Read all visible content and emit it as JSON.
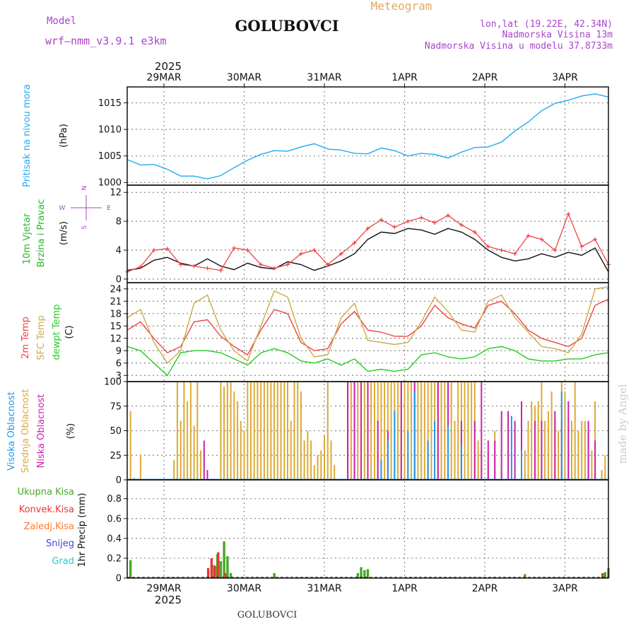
{
  "header": {
    "model_label": "Model",
    "model_name": "wrf–nmm_v3.9.1  e3km",
    "station": "GOLUBOVCI",
    "meteogram": "Meteogram",
    "lonlat": "lon,lat (19.22E, 42.34N)",
    "altitude": "Nadmorska Visina 13m",
    "model_altitude": "Nadmorska Visina u modelu 37.8733m",
    "footer_station": "GOLUBOVCI",
    "watermark": "made by Angel",
    "year": "2025"
  },
  "colors": {
    "pressure": "#22aaee",
    "wind_label": "#22bb22",
    "t2m": "#ee4444",
    "tsfc": "#ccaa44",
    "dewpt": "#22cc22",
    "cloud_high": "#2299ee",
    "cloud_mid": "#ddaa33",
    "cloud_low": "#cc22aa",
    "precip_total": "#44aa22",
    "precip_conv": "#ee3333",
    "precip_frozen": "#ff7733",
    "snow": "#4444dd",
    "hail": "#22cccc",
    "compass": "#aa44cc",
    "grid": "#888888"
  },
  "chart_data": {
    "type": "meteogram",
    "time_axis": {
      "start": "2025-03-28T13:00",
      "hours": 144,
      "ticks": [
        "29MAR",
        "30MAR",
        "31MAR",
        "1APR",
        "2APR",
        "3APR"
      ],
      "tick_hours": [
        11,
        35,
        59,
        83,
        107,
        131
      ]
    },
    "panels": [
      {
        "id": "pressure",
        "type": "line",
        "ylabel": "Pritisak na nivou mora",
        "unit": "(hPa)",
        "ylim": [
          999.5,
          1018
        ],
        "yticks": [
          1000,
          1005,
          1010,
          1015
        ],
        "series": [
          {
            "name": "pressure",
            "x": [
              0,
              4,
              8,
              12,
              16,
              20,
              24,
              28,
              32,
              36,
              40,
              44,
              48,
              52,
              56,
              60,
              64,
              68,
              72,
              76,
              80,
              84,
              88,
              92,
              96,
              100,
              104,
              108,
              112,
              116,
              120,
              124,
              128,
              132,
              136,
              140,
              144
            ],
            "values": [
              1004.3,
              1003.3,
              1003.4,
              1002.5,
              1001.2,
              1001.2,
              1000.7,
              1001.3,
              1002.8,
              1004.2,
              1005.3,
              1006.0,
              1005.9,
              1006.7,
              1007.3,
              1006.3,
              1006.1,
              1005.5,
              1005.4,
              1006.5,
              1006.0,
              1005.0,
              1005.5,
              1005.3,
              1004.6,
              1005.7,
              1006.6,
              1006.7,
              1007.6,
              1009.7,
              1011.4,
              1013.5,
              1014.9,
              1015.5,
              1016.3,
              1016.7,
              1016.1
            ]
          }
        ]
      },
      {
        "id": "wind",
        "type": "line",
        "ylabel": "10m Vjetar",
        "ylabel2": "Brzina i Pravac",
        "unit": "(m/s)",
        "compass": {
          "n": "N",
          "s": "S",
          "e": "E",
          "w": "W"
        },
        "ylim": [
          -0.5,
          13
        ],
        "yticks": [
          0,
          4,
          8,
          12
        ],
        "series": [
          {
            "name": "wind_speed",
            "x": [
              0,
              4,
              8,
              12,
              16,
              20,
              24,
              28,
              32,
              36,
              40,
              44,
              48,
              52,
              56,
              60,
              64,
              68,
              72,
              76,
              80,
              84,
              88,
              92,
              96,
              100,
              104,
              108,
              112,
              116,
              120,
              124,
              128,
              132,
              136,
              140,
              144
            ],
            "values": [
              1.2,
              1.5,
              2.6,
              3.0,
              2.2,
              1.8,
              2.8,
              1.8,
              1.3,
              2.2,
              1.6,
              1.4,
              2.4,
              2.0,
              1.2,
              1.8,
              2.5,
              3.5,
              5.5,
              6.5,
              6.3,
              7.0,
              6.8,
              6.2,
              7.0,
              6.5,
              5.5,
              4.0,
              3.0,
              2.5,
              2.8,
              3.5,
              3.0,
              3.7,
              3.3,
              4.3,
              1.0
            ]
          },
          {
            "name": "wind_gust",
            "x": [
              0,
              4,
              8,
              12,
              16,
              20,
              24,
              28,
              32,
              36,
              40,
              44,
              48,
              52,
              56,
              60,
              64,
              68,
              72,
              76,
              80,
              84,
              88,
              92,
              96,
              100,
              104,
              108,
              112,
              116,
              120,
              124,
              128,
              132,
              136,
              140,
              144
            ],
            "values": [
              1.0,
              1.7,
              4.0,
              4.2,
              2.0,
              1.8,
              1.5,
              1.2,
              4.3,
              4.0,
              2.0,
              1.5,
              2.0,
              3.5,
              4.0,
              2.0,
              3.5,
              5.0,
              7.0,
              8.2,
              7.2,
              8.0,
              8.5,
              7.8,
              8.8,
              7.5,
              6.5,
              4.5,
              4.0,
              3.5,
              6.0,
              5.5,
              4.0,
              9.0,
              4.5,
              5.5,
              2.0
            ]
          }
        ]
      },
      {
        "id": "temperature",
        "type": "line",
        "ylabel": "2m Temp",
        "ylabel2": "SFC Temp",
        "ylabel3": "dewpt Temp",
        "unit": "(C)",
        "ylim": [
          1.5,
          25.5
        ],
        "yticks": [
          3,
          6,
          9,
          12,
          15,
          18,
          21,
          24
        ],
        "series": [
          {
            "name": "2m Temp",
            "x": [
              0,
              4,
              8,
              12,
              16,
              20,
              24,
              28,
              32,
              36,
              40,
              44,
              48,
              52,
              56,
              60,
              64,
              68,
              72,
              76,
              80,
              84,
              88,
              92,
              96,
              100,
              104,
              108,
              112,
              116,
              120,
              124,
              128,
              132,
              136,
              140,
              144
            ],
            "values": [
              14.0,
              16.0,
              12.0,
              8.5,
              10.0,
              16.0,
              16.5,
              12.5,
              10.0,
              8.0,
              14.0,
              19.0,
              18.0,
              11.0,
              9.0,
              9.5,
              15.5,
              18.5,
              14.0,
              13.5,
              12.5,
              12.5,
              15.0,
              20.0,
              17.0,
              15.5,
              14.5,
              20.0,
              21.0,
              18.0,
              14.0,
              12.0,
              11.0,
              10.0,
              12.0,
              20.0,
              21.5
            ]
          },
          {
            "name": "SFC Temp",
            "x": [
              0,
              4,
              8,
              12,
              16,
              20,
              24,
              28,
              32,
              36,
              40,
              44,
              48,
              52,
              56,
              60,
              64,
              68,
              72,
              76,
              80,
              84,
              88,
              92,
              96,
              100,
              104,
              108,
              112,
              116,
              120,
              124,
              128,
              132,
              136,
              140,
              144
            ],
            "values": [
              17.0,
              19.0,
              11.0,
              6.0,
              9.0,
              20.5,
              22.5,
              14.0,
              9.0,
              6.5,
              15.0,
              23.5,
              22.0,
              12.0,
              7.5,
              8.0,
              17.0,
              20.5,
              11.5,
              11.0,
              10.5,
              11.0,
              16.0,
              22.0,
              18.5,
              14.0,
              13.5,
              21.0,
              22.5,
              17.0,
              13.5,
              10.0,
              9.5,
              8.5,
              13.0,
              24.0,
              24.5
            ]
          },
          {
            "name": "dewpt Temp",
            "x": [
              0,
              4,
              8,
              12,
              16,
              20,
              24,
              28,
              32,
              36,
              40,
              44,
              48,
              52,
              56,
              60,
              64,
              68,
              72,
              76,
              80,
              84,
              88,
              92,
              96,
              100,
              104,
              108,
              112,
              116,
              120,
              124,
              128,
              132,
              136,
              140,
              144
            ],
            "values": [
              10.0,
              9.0,
              6.0,
              3.0,
              8.5,
              9.0,
              9.0,
              8.5,
              7.0,
              5.5,
              8.5,
              9.5,
              8.5,
              6.5,
              6.0,
              7.0,
              5.5,
              7.0,
              4.0,
              4.5,
              4.0,
              4.5,
              8.0,
              8.5,
              7.5,
              7.0,
              7.5,
              9.5,
              10.0,
              9.0,
              7.0,
              6.5,
              6.5,
              7.0,
              7.0,
              8.0,
              8.5
            ]
          }
        ]
      },
      {
        "id": "clouds",
        "type": "bar",
        "ylabel": "Visoka Oblacnost",
        "ylabel2": "Srednja Oblacnost",
        "ylabel3": "Niska Oblacnost",
        "unit": "(%)",
        "ylim": [
          0,
          100
        ],
        "yticks": [
          0,
          25,
          50,
          75,
          100
        ],
        "series": [
          {
            "name": "Srednja Oblacnost",
            "x": [
              1,
              2,
              4,
              14,
              15,
              16,
              17,
              18,
              19,
              20,
              21,
              22,
              28,
              29,
              30,
              31,
              32,
              33,
              34,
              35,
              36,
              37,
              38,
              39,
              40,
              41,
              42,
              43,
              44,
              45,
              46,
              47,
              48,
              49,
              50,
              51,
              52,
              53,
              54,
              55,
              56,
              57,
              58,
              59,
              60,
              61,
              62,
              66,
              67,
              68,
              69,
              70,
              71,
              72,
              73,
              74,
              75,
              76,
              77,
              78,
              79,
              80,
              81,
              82,
              83,
              84,
              85,
              86,
              87,
              88,
              89,
              90,
              91,
              92,
              93,
              94,
              95,
              96,
              97,
              98,
              99,
              100,
              101,
              102,
              103,
              104,
              105,
              106,
              108,
              110,
              112,
              118,
              119,
              120,
              121,
              122,
              123,
              124,
              125,
              126,
              127,
              128,
              129,
              130,
              131,
              132,
              133,
              134,
              135,
              136,
              137,
              138,
              139,
              140,
              142,
              143
            ],
            "values": [
              70,
              2,
              26,
              20,
              100,
              60,
              100,
              80,
              100,
              55,
              100,
              30,
              100,
              95,
              100,
              100,
              90,
              80,
              60,
              50,
              100,
              100,
              100,
              100,
              100,
              100,
              100,
              100,
              100,
              100,
              100,
              100,
              100,
              60,
              100,
              100,
              90,
              40,
              50,
              40,
              15,
              25,
              30,
              45,
              100,
              40,
              15,
              100,
              100,
              100,
              100,
              100,
              100,
              100,
              100,
              100,
              100,
              100,
              100,
              100,
              100,
              100,
              100,
              100,
              100,
              100,
              100,
              100,
              100,
              100,
              100,
              100,
              100,
              100,
              100,
              100,
              100,
              100,
              100,
              60,
              100,
              100,
              100,
              100,
              100,
              100,
              40,
              30,
              20,
              50,
              10,
              10,
              30,
              60,
              80,
              75,
              80,
              100,
              60,
              70,
              90,
              60,
              50,
              100,
              90,
              40,
              60,
              100,
              50,
              60,
              60,
              50,
              30,
              80,
              10,
              25
            ]
          },
          {
            "name": "Niska Oblacnost",
            "x": [
              23,
              24,
              66,
              68,
              70,
              72,
              75,
              78,
              82,
              86,
              90,
              93,
              96,
              100,
              104,
              106,
              108,
              110,
              112,
              114,
              116,
              118,
              122,
              124,
              128,
              130,
              132,
              138,
              140
            ],
            "values": [
              40,
              10,
              100,
              100,
              100,
              100,
              60,
              50,
              100,
              100,
              40,
              100,
              100,
              60,
              60,
              100,
              40,
              40,
              70,
              70,
              60,
              80,
              60,
              60,
              70,
              60,
              80,
              60,
              40
            ]
          },
          {
            "name": "Visoka Oblacnost",
            "x": [
              76,
              78,
              80,
              84,
              86,
              90,
              92,
              96,
              100,
              115,
              118,
              130
            ],
            "values": [
              20,
              40,
              70,
              50,
              90,
              40,
              60,
              55,
              35,
              65,
              30,
              90
            ]
          }
        ]
      },
      {
        "id": "precip",
        "type": "bar",
        "ylabel": "1hr Precip (mm)",
        "ylim": [
          0,
          0.99
        ],
        "yticks": [
          0,
          0.2,
          0.4,
          0.6,
          0.8
        ],
        "legend": [
          "Ukupna Kisa",
          "Konvek.Kisa",
          "Zaledj.Kisa",
          "Snijeg",
          "Grad"
        ],
        "series": [
          {
            "name": "Ukupna Kisa",
            "x": [
              1,
              26,
              27,
              28,
              29,
              30,
              31,
              44,
              69,
              70,
              71,
              72,
              119,
              143,
              144
            ],
            "values": [
              0.18,
              0.13,
              0.24,
              0.17,
              0.37,
              0.22,
              0.05,
              0.05,
              0.05,
              0.11,
              0.08,
              0.09,
              0.04,
              0.06,
              0.1
            ]
          },
          {
            "name": "Konvek.Kisa",
            "x": [
              25,
              26,
              27,
              28,
              30,
              143
            ],
            "values": [
              0.1,
              0.2,
              0.12,
              0.26,
              0.05,
              0.05
            ]
          }
        ]
      }
    ]
  }
}
